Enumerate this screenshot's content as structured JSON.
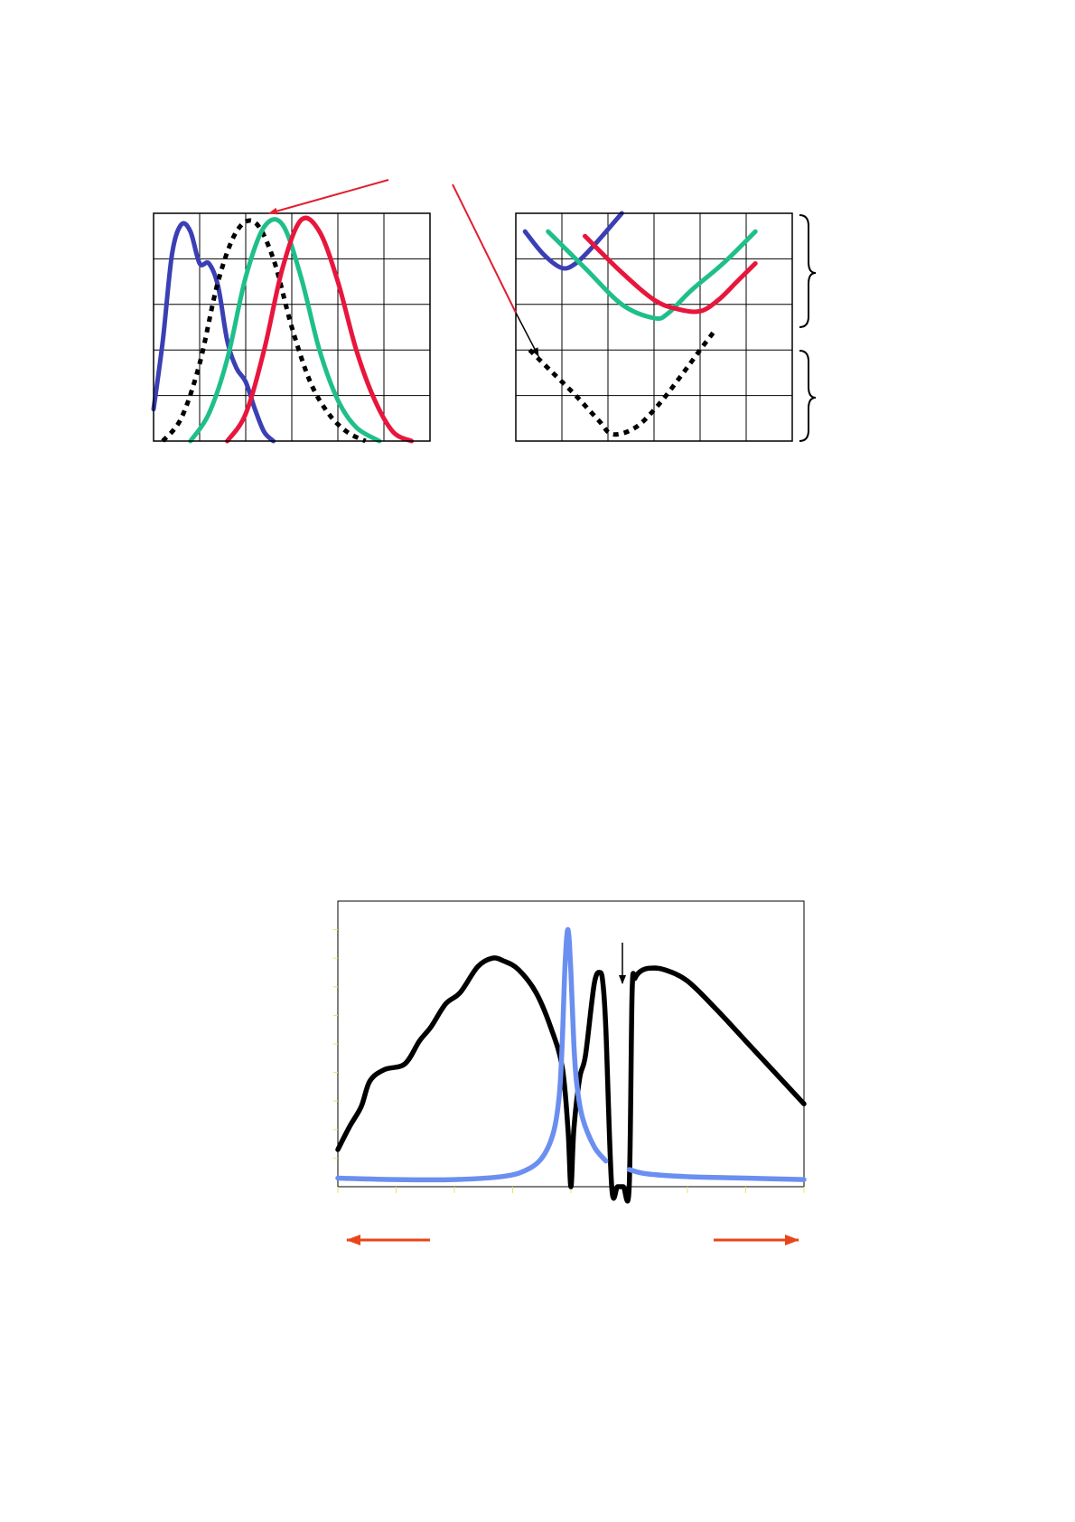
{
  "colors": {
    "blue": "#3b3fb4",
    "green": "#1fbf8b",
    "red": "#e8163c",
    "black": "#000000",
    "light_blue": "#6b8ff0",
    "arrow_red": "#e02030",
    "arrow_orange": "#e8461a",
    "tick_yellow": "#f0e060"
  },
  "chart_data": [
    {
      "type": "line",
      "title": "",
      "xlabel": "",
      "ylabel": "",
      "grid": true,
      "xlim": [
        0,
        6
      ],
      "ylim": [
        0,
        5
      ],
      "series": [
        {
          "color": "blue",
          "style": "solid",
          "x": [
            0,
            0.2,
            0.4,
            0.6,
            0.8,
            1.0,
            1.2,
            1.4,
            1.6,
            1.8,
            2.0,
            2.2,
            2.4,
            2.6
          ],
          "y": [
            0.7,
            2.2,
            4.1,
            4.75,
            4.6,
            3.9,
            3.9,
            3.4,
            2.2,
            1.6,
            1.3,
            0.7,
            0.2,
            0
          ]
        },
        {
          "color": "black",
          "style": "dotted",
          "x": [
            0.2,
            0.6,
            1.0,
            1.4,
            1.8,
            2.2,
            2.6,
            3.0,
            3.4,
            3.8,
            4.2,
            4.6
          ],
          "y": [
            0,
            0.5,
            1.7,
            3.5,
            4.6,
            4.8,
            4.0,
            2.5,
            1.3,
            0.6,
            0.2,
            0
          ]
        },
        {
          "color": "green",
          "style": "solid",
          "x": [
            0.8,
            1.2,
            1.6,
            2.0,
            2.4,
            2.8,
            3.2,
            3.6,
            4.0,
            4.4,
            4.9
          ],
          "y": [
            0,
            0.6,
            1.8,
            3.6,
            4.7,
            4.75,
            3.6,
            2.0,
            0.9,
            0.3,
            0
          ]
        },
        {
          "color": "red",
          "style": "solid",
          "x": [
            1.6,
            2.0,
            2.4,
            2.8,
            3.2,
            3.6,
            4.0,
            4.4,
            4.8,
            5.2,
            5.6
          ],
          "y": [
            0,
            0.6,
            2.0,
            3.8,
            4.85,
            4.6,
            3.5,
            2.0,
            0.9,
            0.2,
            0
          ]
        }
      ]
    },
    {
      "type": "line",
      "title": "",
      "xlabel": "",
      "ylabel": "",
      "grid": true,
      "xlim": [
        0,
        6
      ],
      "ylim": [
        0,
        5
      ],
      "series": [
        {
          "color": "blue",
          "style": "solid",
          "x": [
            0.2,
            0.6,
            1.0,
            1.3,
            1.7,
            2.3
          ],
          "y": [
            4.6,
            4.1,
            3.8,
            3.9,
            4.3,
            5.0
          ]
        },
        {
          "color": "green",
          "style": "solid",
          "x": [
            0.7,
            1.5,
            2.3,
            3.0,
            3.3,
            3.8,
            4.5,
            5.2
          ],
          "y": [
            4.6,
            3.8,
            3.0,
            2.7,
            2.8,
            3.3,
            3.9,
            4.6
          ]
        },
        {
          "color": "red",
          "style": "solid",
          "x": [
            1.5,
            2.3,
            3.0,
            3.5,
            4.0,
            4.4,
            4.8,
            5.2
          ],
          "y": [
            4.5,
            3.7,
            3.1,
            2.9,
            2.85,
            3.1,
            3.5,
            3.9
          ]
        },
        {
          "color": "black",
          "style": "dotted",
          "x": [
            0.3,
            0.8,
            1.3,
            1.8,
            2.1,
            2.6,
            3.1,
            3.6,
            4.0,
            4.3
          ],
          "y": [
            2.0,
            1.5,
            1.0,
            0.45,
            0.15,
            0.3,
            0.8,
            1.45,
            2.0,
            2.4
          ]
        }
      ]
    },
    {
      "type": "line",
      "title": "",
      "xlabel": "",
      "ylabel": "",
      "grid": false,
      "xlim": [
        0,
        8
      ],
      "ylim": [
        0,
        10
      ],
      "series": [
        {
          "color": "black",
          "style": "solid",
          "x": [
            0,
            0.2,
            0.4,
            0.55,
            0.8,
            1.15,
            1.4,
            1.6,
            1.85,
            2.1,
            2.4,
            2.65,
            2.85,
            3.1,
            3.4,
            3.65,
            3.85,
            3.95,
            4.0,
            4.05,
            4.15,
            4.25,
            4.4,
            4.5,
            4.55,
            4.6,
            4.7,
            4.8,
            4.9,
            5.0,
            5.05,
            5.1,
            5.2,
            5.35,
            5.6,
            6.0,
            6.5,
            7.0,
            7.5,
            8.0
          ],
          "y": [
            1.3,
            2.1,
            2.8,
            3.7,
            4.1,
            4.3,
            5.1,
            5.6,
            6.4,
            6.8,
            7.7,
            8.0,
            7.9,
            7.6,
            6.8,
            5.6,
            4.2,
            2.0,
            0,
            2.0,
            3.8,
            4.6,
            7.1,
            7.5,
            7.1,
            5.5,
            0,
            0,
            0,
            0,
            6.8,
            7.3,
            7.55,
            7.65,
            7.6,
            7.2,
            6.2,
            5.1,
            4.0,
            2.9
          ]
        },
        {
          "color": "light_blue",
          "style": "solid",
          "x": [
            0,
            1.0,
            2.0,
            2.8,
            3.2,
            3.5,
            3.7,
            3.8,
            3.85,
            3.9,
            3.95,
            4.0,
            4.05,
            4.1,
            4.2,
            4.4,
            4.6,
            4.75,
            5.0,
            5.3,
            6.0,
            7.0,
            8.0
          ],
          "y": [
            0.3,
            0.25,
            0.25,
            0.35,
            0.55,
            1.0,
            1.9,
            3.2,
            5.0,
            7.8,
            9.0,
            7.5,
            5.0,
            3.6,
            2.4,
            1.4,
            0.9,
            null,
            0.6,
            0.45,
            0.35,
            0.3,
            0.25
          ]
        }
      ]
    }
  ]
}
